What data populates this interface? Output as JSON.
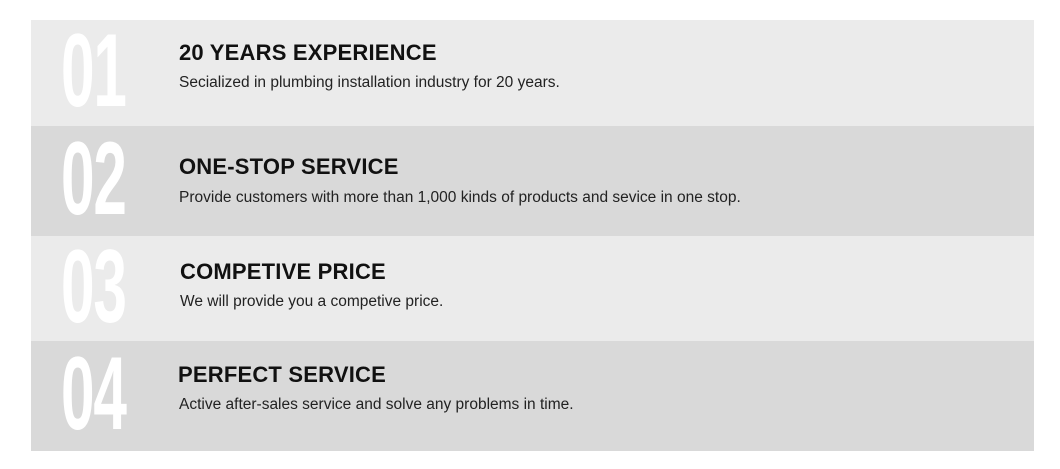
{
  "items": [
    {
      "number": "01",
      "title": "20 YEARS EXPERIENCE",
      "description": "Secialized in plumbing installation industry for 20 years."
    },
    {
      "number": "02",
      "title": "ONE-STOP SERVICE",
      "description": "Provide customers with more than 1,000 kinds of products and sevice in one stop."
    },
    {
      "number": "03",
      "title": "COMPETIVE PRICE",
      "description": "We will provide you a competive price."
    },
    {
      "number": "04",
      "title": "PERFECT SERVICE",
      "description": "Active after-sales service and solve any problems in time."
    }
  ],
  "colors": {
    "band_light": "#ebebeb",
    "band_dark": "#d9d9d9",
    "number": "#ffffff"
  }
}
